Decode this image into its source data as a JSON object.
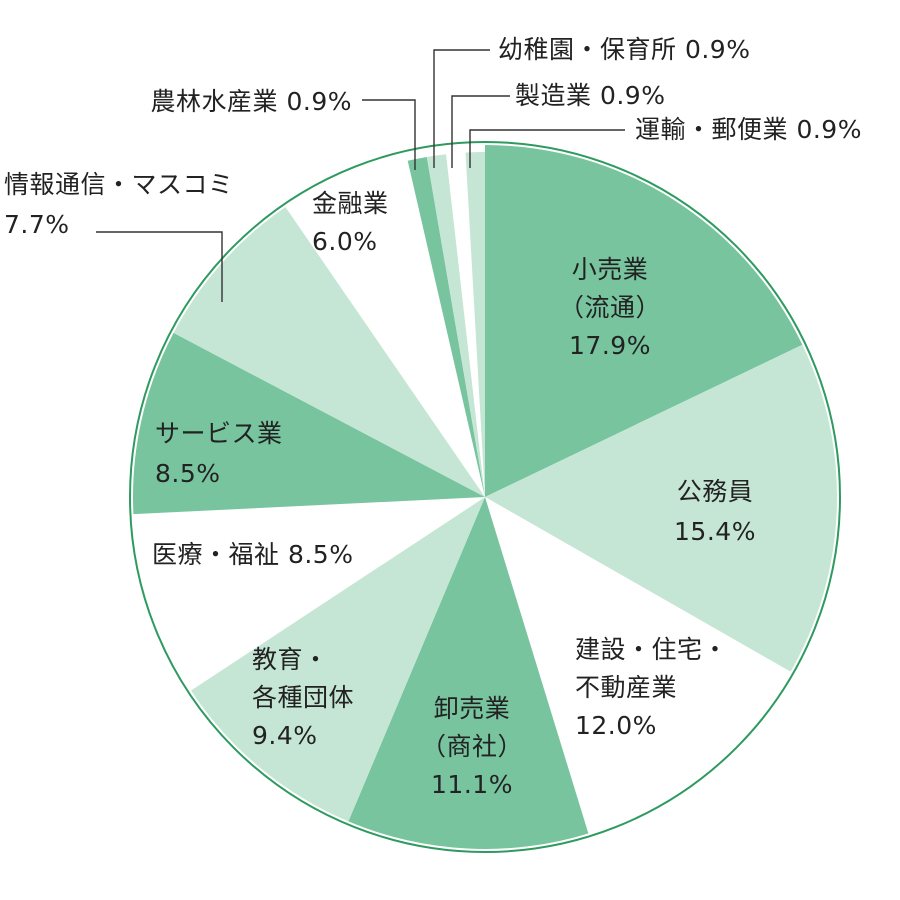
{
  "chart_data": {
    "type": "pie",
    "title": "",
    "start": "top (12 o'clock)",
    "direction": "clockwise",
    "slices": [
      {
        "label": "小売業（流通）",
        "value": 17.9,
        "color": "#77c49f",
        "text_lines": [
          "小売業",
          "（流通）",
          "17.9%"
        ]
      },
      {
        "label": "公務員",
        "value": 15.4,
        "color": "#c5e6d5",
        "text_lines": [
          "公務員",
          "15.4%"
        ]
      },
      {
        "label": "建設・住宅・不動産業",
        "value": 12.0,
        "color": "#ffffff",
        "text_lines": [
          "建設・住宅・",
          "不動産業",
          "12.0%"
        ]
      },
      {
        "label": "卸売業（商社）",
        "value": 11.1,
        "color": "#77c49f",
        "text_lines": [
          "卸売業",
          "（商社）",
          "11.1%"
        ]
      },
      {
        "label": "教育・各種団体",
        "value": 9.4,
        "color": "#c5e6d5",
        "text_lines": [
          "教育・",
          "各種団体",
          "9.4%"
        ]
      },
      {
        "label": "医療・福祉",
        "value": 8.5,
        "color": "#ffffff",
        "text_lines": [
          "医療・福祉 8.5%"
        ]
      },
      {
        "label": "サービス業",
        "value": 8.5,
        "color": "#77c49f",
        "text_lines": [
          "サービス業",
          "8.5%"
        ]
      },
      {
        "label": "情報通信・マスコミ",
        "value": 7.7,
        "color": "#c5e6d5",
        "text_lines": [
          "情報通信・マスコミ",
          "7.7%"
        ]
      },
      {
        "label": "金融業",
        "value": 6.0,
        "color": "#ffffff",
        "text_lines": [
          "金融業",
          "6.0%"
        ]
      },
      {
        "label": "農林水産業",
        "value": 0.9,
        "color": "#77c49f",
        "text_lines": [
          "農林水産業 0.9%"
        ]
      },
      {
        "label": "幼稚園・保育所",
        "value": 0.9,
        "color": "#c5e6d5",
        "text_lines": [
          "幼稚園・保育所 0.9%"
        ]
      },
      {
        "label": "製造業",
        "value": 0.9,
        "color": "#ffffff",
        "text_lines": [
          "製造業 0.9%"
        ]
      },
      {
        "label": "運輸・郵便業",
        "value": 0.9,
        "color": "#c5e6d5",
        "text_lines": [
          "運輸・郵便業 0.9%"
        ]
      }
    ],
    "outline_color": "#2e9a5f",
    "legend": "none"
  }
}
